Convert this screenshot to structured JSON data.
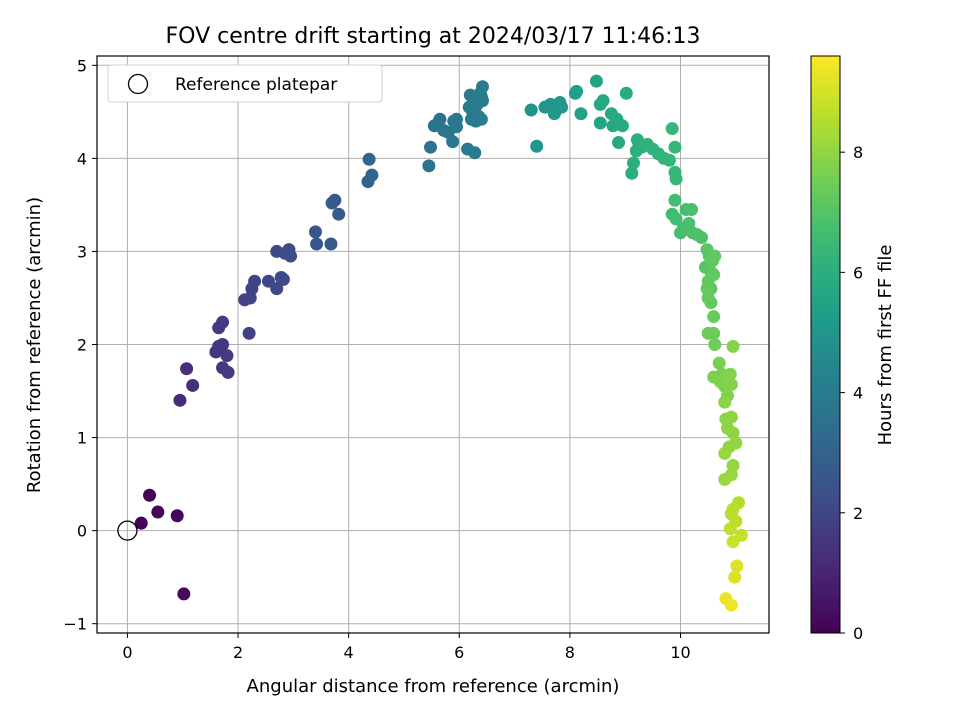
{
  "chart_data": {
    "type": "scatter",
    "title": "FOV centre drift starting at 2024/03/17 11:46:13",
    "xlabel": "Angular distance from reference (arcmin)",
    "ylabel": "Rotation from reference (arcmin)",
    "xlim": [
      -0.55,
      11.6
    ],
    "ylim": [
      -1.1,
      5.1
    ],
    "xticks": [
      0,
      2,
      4,
      6,
      8,
      10
    ],
    "yticks": [
      -1,
      0,
      1,
      2,
      3,
      4,
      5
    ],
    "grid": true,
    "legend": {
      "position": "top-left",
      "entries": [
        "Reference platepar"
      ]
    },
    "reference_point": {
      "name": "Reference platepar",
      "x": 0,
      "y": 0
    },
    "colorbar": {
      "label": "Hours from first FF file",
      "range": [
        0,
        9.6
      ],
      "ticks": [
        0,
        2,
        4,
        6,
        8
      ],
      "colormap": "viridis"
    },
    "points": [
      [
        0.25,
        0.08,
        0.05
      ],
      [
        0.4,
        0.38,
        0.1
      ],
      [
        0.55,
        0.2,
        0.15
      ],
      [
        0.9,
        0.16,
        0.2
      ],
      [
        1.02,
        -0.68,
        0.25
      ],
      [
        0.95,
        1.4,
        1.2
      ],
      [
        1.07,
        1.74,
        1.25
      ],
      [
        1.18,
        1.56,
        1.3
      ],
      [
        1.6,
        1.92,
        1.5
      ],
      [
        1.65,
        1.98,
        1.55
      ],
      [
        1.72,
        2.0,
        1.55
      ],
      [
        1.65,
        2.18,
        1.6
      ],
      [
        1.72,
        2.24,
        1.62
      ],
      [
        1.72,
        1.75,
        1.6
      ],
      [
        1.8,
        1.88,
        1.62
      ],
      [
        1.82,
        1.7,
        1.65
      ],
      [
        2.12,
        2.48,
        1.85
      ],
      [
        2.2,
        2.12,
        1.85
      ],
      [
        2.22,
        2.5,
        1.9
      ],
      [
        2.25,
        2.6,
        1.9
      ],
      [
        2.3,
        2.68,
        1.92
      ],
      [
        2.55,
        2.68,
        2.05
      ],
      [
        2.7,
        3.0,
        2.1
      ],
      [
        2.7,
        2.6,
        2.1
      ],
      [
        2.78,
        2.72,
        2.12
      ],
      [
        2.85,
        2.98,
        2.15
      ],
      [
        2.92,
        3.02,
        2.15
      ],
      [
        2.95,
        2.95,
        2.2
      ],
      [
        2.82,
        2.7,
        2.18
      ],
      [
        3.4,
        3.21,
        2.55
      ],
      [
        3.42,
        3.08,
        2.55
      ],
      [
        3.68,
        3.08,
        2.65
      ],
      [
        3.7,
        3.52,
        2.7
      ],
      [
        3.75,
        3.55,
        2.72
      ],
      [
        3.82,
        3.4,
        2.75
      ],
      [
        4.35,
        3.75,
        3.05
      ],
      [
        4.37,
        3.99,
        3.05
      ],
      [
        4.42,
        3.82,
        3.1
      ],
      [
        5.45,
        3.92,
        3.6
      ],
      [
        5.48,
        4.12,
        3.62
      ],
      [
        5.55,
        4.35,
        3.65
      ],
      [
        5.62,
        4.38,
        3.7
      ],
      [
        5.65,
        4.42,
        3.7
      ],
      [
        5.72,
        4.3,
        3.72
      ],
      [
        5.8,
        4.28,
        3.75
      ],
      [
        5.88,
        4.18,
        3.78
      ],
      [
        5.9,
        4.4,
        3.8
      ],
      [
        5.95,
        4.42,
        3.8
      ],
      [
        5.95,
        4.34,
        3.8
      ],
      [
        6.15,
        4.1,
        3.9
      ],
      [
        6.18,
        4.55,
        3.9
      ],
      [
        6.2,
        4.68,
        3.92
      ],
      [
        6.25,
        4.48,
        3.95
      ],
      [
        6.3,
        4.4,
        3.95
      ],
      [
        6.35,
        4.45,
        3.98
      ],
      [
        6.38,
        4.7,
        4.0
      ],
      [
        6.4,
        4.66,
        4.0
      ],
      [
        6.42,
        4.62,
        4.02
      ],
      [
        6.42,
        4.77,
        4.02
      ],
      [
        6.4,
        4.42,
        4.0
      ],
      [
        6.28,
        4.06,
        3.98
      ],
      [
        6.22,
        4.42,
        3.95
      ],
      [
        6.3,
        4.56,
        3.97
      ],
      [
        6.35,
        4.6,
        3.98
      ],
      [
        7.3,
        4.52,
        4.9
      ],
      [
        7.4,
        4.13,
        4.95
      ],
      [
        7.55,
        4.55,
        5.0
      ],
      [
        7.65,
        4.58,
        5.05
      ],
      [
        7.72,
        4.48,
        5.1
      ],
      [
        7.75,
        4.52,
        5.1
      ],
      [
        7.82,
        4.6,
        5.12
      ],
      [
        7.85,
        4.55,
        5.15
      ],
      [
        8.1,
        4.7,
        5.4
      ],
      [
        8.12,
        4.72,
        5.42
      ],
      [
        8.2,
        4.48,
        5.45
      ],
      [
        8.48,
        4.83,
        5.6
      ],
      [
        8.55,
        4.58,
        5.65
      ],
      [
        8.55,
        4.38,
        5.65
      ],
      [
        8.6,
        4.62,
        5.7
      ],
      [
        8.75,
        4.48,
        5.75
      ],
      [
        8.78,
        4.35,
        5.78
      ],
      [
        8.85,
        4.42,
        5.8
      ],
      [
        8.88,
        4.17,
        5.82
      ],
      [
        8.95,
        4.35,
        5.85
      ],
      [
        9.02,
        4.7,
        5.9
      ],
      [
        9.12,
        3.84,
        6.0
      ],
      [
        9.15,
        3.95,
        6.02
      ],
      [
        9.2,
        4.08,
        6.05
      ],
      [
        9.22,
        4.2,
        6.05
      ],
      [
        9.25,
        4.15,
        6.08
      ],
      [
        9.3,
        4.12,
        6.1
      ],
      [
        9.4,
        4.15,
        6.15
      ],
      [
        9.5,
        4.1,
        6.2
      ],
      [
        9.6,
        4.05,
        6.25
      ],
      [
        9.7,
        4.0,
        6.3
      ],
      [
        9.8,
        3.98,
        6.35
      ],
      [
        9.85,
        4.32,
        6.38
      ],
      [
        9.9,
        4.12,
        6.4
      ],
      [
        9.9,
        3.85,
        6.42
      ],
      [
        9.92,
        3.78,
        6.45
      ],
      [
        9.85,
        3.4,
        6.6
      ],
      [
        9.9,
        3.55,
        6.62
      ],
      [
        9.92,
        3.35,
        6.65
      ],
      [
        10.0,
        3.2,
        6.7
      ],
      [
        10.05,
        3.25,
        6.72
      ],
      [
        10.1,
        3.45,
        6.75
      ],
      [
        10.15,
        3.3,
        6.78
      ],
      [
        10.2,
        3.45,
        6.8
      ],
      [
        10.22,
        3.2,
        6.82
      ],
      [
        10.3,
        3.18,
        6.85
      ],
      [
        10.38,
        3.15,
        6.9
      ],
      [
        10.45,
        2.83,
        7.05
      ],
      [
        10.48,
        3.02,
        7.08
      ],
      [
        10.52,
        2.95,
        7.1
      ],
      [
        10.55,
        2.78,
        7.12
      ],
      [
        10.55,
        2.6,
        7.15
      ],
      [
        10.58,
        2.9,
        7.18
      ],
      [
        10.6,
        2.75,
        7.2
      ],
      [
        10.62,
        2.95,
        7.22
      ],
      [
        10.5,
        2.68,
        7.25
      ],
      [
        10.48,
        2.6,
        7.28
      ],
      [
        10.5,
        2.5,
        7.3
      ],
      [
        10.55,
        2.45,
        7.32
      ],
      [
        10.6,
        2.3,
        7.35
      ],
      [
        10.5,
        2.12,
        7.4
      ],
      [
        10.6,
        2.12,
        7.42
      ],
      [
        10.62,
        2.0,
        7.45
      ],
      [
        10.7,
        1.8,
        7.6
      ],
      [
        10.75,
        1.68,
        7.62
      ],
      [
        10.6,
        1.65,
        7.65
      ],
      [
        10.72,
        1.6,
        7.7
      ],
      [
        10.8,
        1.55,
        7.72
      ],
      [
        10.85,
        1.45,
        7.75
      ],
      [
        10.9,
        1.68,
        7.78
      ],
      [
        10.92,
        1.57,
        7.8
      ],
      [
        10.95,
        1.98,
        7.82
      ],
      [
        10.8,
        1.38,
        7.85
      ],
      [
        10.82,
        1.2,
        7.9
      ],
      [
        10.85,
        1.1,
        7.92
      ],
      [
        10.92,
        1.22,
        7.95
      ],
      [
        10.95,
        1.05,
        7.98
      ],
      [
        11.0,
        0.94,
        8.0
      ],
      [
        10.88,
        0.9,
        8.02
      ],
      [
        10.95,
        0.7,
        8.05
      ],
      [
        10.92,
        0.6,
        8.1
      ],
      [
        10.8,
        0.83,
        8.12
      ],
      [
        10.8,
        0.55,
        8.15
      ],
      [
        11.05,
        0.3,
        8.5
      ],
      [
        10.92,
        0.18,
        8.55
      ],
      [
        10.95,
        0.23,
        8.6
      ],
      [
        11.0,
        0.1,
        8.65
      ],
      [
        10.9,
        0.02,
        8.7
      ],
      [
        11.1,
        -0.05,
        8.8
      ],
      [
        10.95,
        -0.12,
        8.85
      ],
      [
        10.98,
        -0.5,
        9.1
      ],
      [
        11.02,
        -0.38,
        9.15
      ],
      [
        10.82,
        -0.73,
        9.3
      ],
      [
        10.92,
        -0.8,
        9.4
      ]
    ]
  }
}
